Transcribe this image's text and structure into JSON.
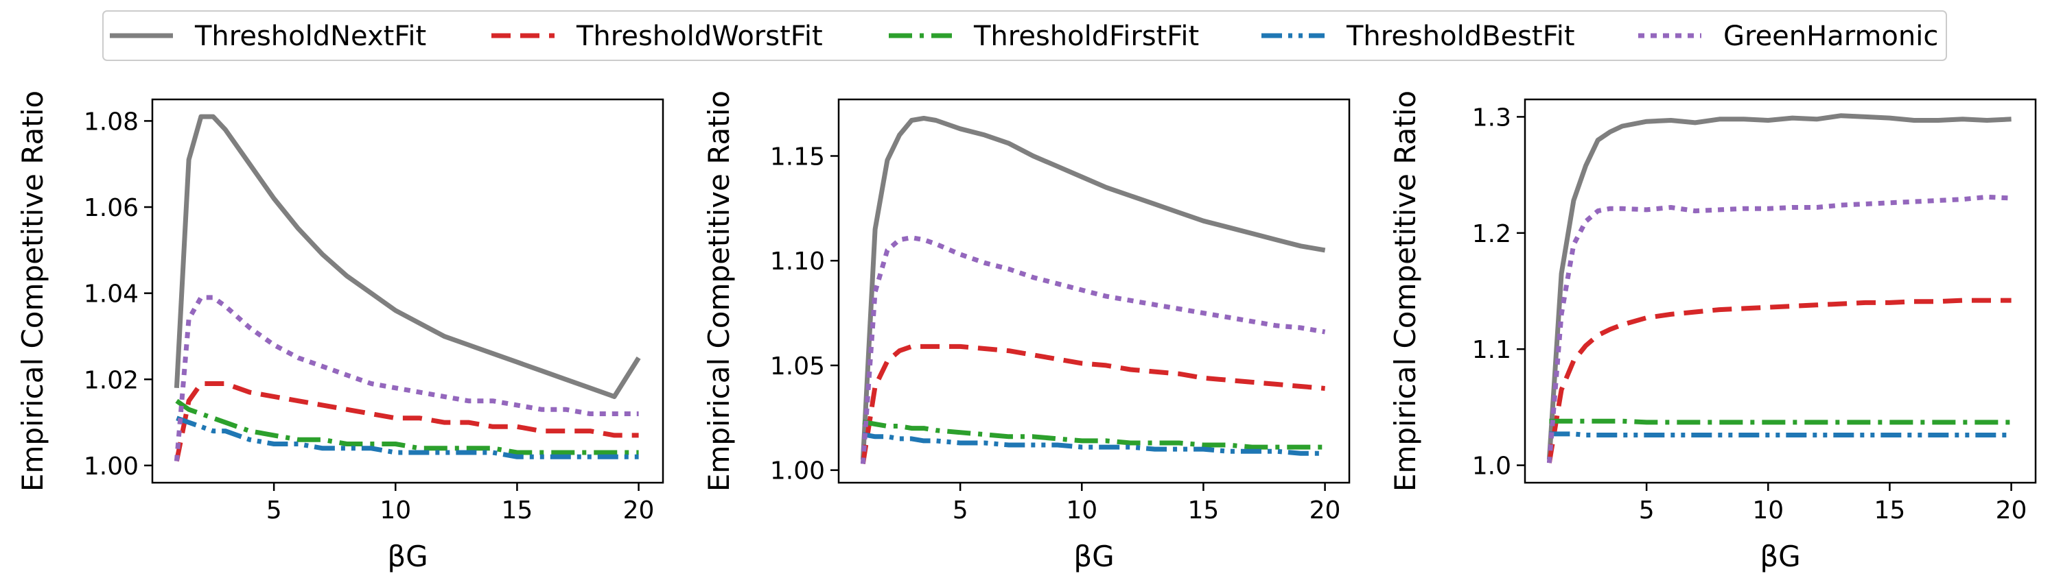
{
  "legend": {
    "placement": "top-center",
    "entries": [
      {
        "name": "ThresholdNextFit",
        "color": "#7f7f7f",
        "style": "solid"
      },
      {
        "name": "ThresholdWorstFit",
        "color": "#d62728",
        "style": "dashed"
      },
      {
        "name": "ThresholdFirstFit",
        "color": "#2ca02c",
        "style": "dashdot"
      },
      {
        "name": "ThresholdBestFit",
        "color": "#1f77b4",
        "style": "dashdotdot"
      },
      {
        "name": "GreenHarmonic",
        "color": "#9467bd",
        "style": "dotted"
      }
    ]
  },
  "chart_data": [
    {
      "type": "line",
      "xlabel": "βG",
      "ylabel": "Empirical Competitive Ratio",
      "xlim": [
        0,
        21
      ],
      "ylim": [
        0.996,
        1.085
      ],
      "xticks": [
        "5",
        "10",
        "15",
        "20"
      ],
      "yticks": [
        "1.00",
        "1.02",
        "1.04",
        "1.06",
        "1.08"
      ],
      "grid": false,
      "x": [
        1,
        1.5,
        2,
        2.5,
        3,
        4,
        5,
        6,
        7,
        8,
        9,
        10,
        11,
        12,
        13,
        14,
        15,
        16,
        17,
        18,
        19,
        20
      ],
      "series": [
        {
          "name": "ThresholdNextFit",
          "values": [
            1.018,
            1.071,
            1.081,
            1.081,
            1.078,
            1.07,
            1.062,
            1.055,
            1.049,
            1.044,
            1.04,
            1.036,
            1.033,
            1.03,
            1.028,
            1.026,
            1.024,
            1.022,
            1.02,
            1.018,
            1.016,
            1.025
          ]
        },
        {
          "name": "ThresholdWorstFit",
          "values": [
            1.001,
            1.015,
            1.019,
            1.019,
            1.019,
            1.017,
            1.016,
            1.015,
            1.014,
            1.013,
            1.012,
            1.011,
            1.011,
            1.01,
            1.01,
            1.009,
            1.009,
            1.008,
            1.008,
            1.008,
            1.007,
            1.007
          ]
        },
        {
          "name": "ThresholdFirstFit",
          "values": [
            1.015,
            1.013,
            1.012,
            1.011,
            1.01,
            1.008,
            1.007,
            1.006,
            1.006,
            1.005,
            1.005,
            1.005,
            1.004,
            1.004,
            1.004,
            1.004,
            1.003,
            1.003,
            1.003,
            1.003,
            1.003,
            1.003
          ]
        },
        {
          "name": "ThresholdBestFit",
          "values": [
            1.011,
            1.01,
            1.009,
            1.008,
            1.008,
            1.006,
            1.005,
            1.005,
            1.004,
            1.004,
            1.004,
            1.003,
            1.003,
            1.003,
            1.003,
            1.003,
            1.002,
            1.002,
            1.002,
            1.002,
            1.002,
            1.002
          ]
        },
        {
          "name": "GreenHarmonic",
          "values": [
            1.001,
            1.034,
            1.039,
            1.039,
            1.037,
            1.032,
            1.028,
            1.025,
            1.023,
            1.021,
            1.019,
            1.018,
            1.017,
            1.016,
            1.015,
            1.015,
            1.014,
            1.013,
            1.013,
            1.012,
            1.012,
            1.012
          ]
        }
      ]
    },
    {
      "type": "line",
      "xlabel": "βG",
      "ylabel": "Empirical Competitive Ratio",
      "xlim": [
        0,
        21
      ],
      "ylim": [
        0.994,
        1.177
      ],
      "xticks": [
        "5",
        "10",
        "15",
        "20"
      ],
      "yticks": [
        "1.00",
        "1.05",
        "1.10",
        "1.15"
      ],
      "grid": false,
      "x": [
        1,
        1.5,
        2,
        2.5,
        3,
        3.5,
        4,
        5,
        6,
        7,
        8,
        9,
        10,
        11,
        12,
        13,
        14,
        15,
        16,
        17,
        18,
        19,
        20
      ],
      "series": [
        {
          "name": "ThresholdNextFit",
          "values": [
            1.005,
            1.115,
            1.148,
            1.16,
            1.167,
            1.168,
            1.167,
            1.163,
            1.16,
            1.156,
            1.15,
            1.145,
            1.14,
            1.135,
            1.131,
            1.127,
            1.123,
            1.119,
            1.116,
            1.113,
            1.11,
            1.107,
            1.105
          ]
        },
        {
          "name": "ThresholdWorstFit",
          "values": [
            1.003,
            1.04,
            1.052,
            1.057,
            1.059,
            1.059,
            1.059,
            1.059,
            1.058,
            1.057,
            1.055,
            1.053,
            1.051,
            1.05,
            1.048,
            1.047,
            1.046,
            1.044,
            1.043,
            1.042,
            1.041,
            1.04,
            1.039
          ]
        },
        {
          "name": "ThresholdFirstFit",
          "values": [
            1.023,
            1.022,
            1.021,
            1.021,
            1.02,
            1.02,
            1.019,
            1.018,
            1.017,
            1.016,
            1.016,
            1.015,
            1.014,
            1.014,
            1.013,
            1.013,
            1.013,
            1.012,
            1.012,
            1.011,
            1.011,
            1.011,
            1.011
          ]
        },
        {
          "name": "ThresholdBestFit",
          "values": [
            1.017,
            1.016,
            1.016,
            1.015,
            1.015,
            1.014,
            1.014,
            1.013,
            1.013,
            1.012,
            1.012,
            1.012,
            1.011,
            1.011,
            1.011,
            1.01,
            1.01,
            1.01,
            1.009,
            1.009,
            1.009,
            1.008,
            1.008
          ]
        },
        {
          "name": "GreenHarmonic",
          "values": [
            1.003,
            1.085,
            1.105,
            1.11,
            1.111,
            1.11,
            1.108,
            1.103,
            1.099,
            1.096,
            1.092,
            1.089,
            1.086,
            1.083,
            1.081,
            1.079,
            1.077,
            1.075,
            1.073,
            1.071,
            1.069,
            1.068,
            1.066
          ]
        }
      ]
    },
    {
      "type": "line",
      "xlabel": "βG",
      "ylabel": "Empirical Competitive Ratio",
      "xlim": [
        0,
        21
      ],
      "ylim": [
        0.985,
        1.315
      ],
      "xticks": [
        "5",
        "10",
        "15",
        "20"
      ],
      "yticks": [
        "1.0",
        "1.1",
        "1.2",
        "1.3"
      ],
      "grid": false,
      "x": [
        1,
        1.5,
        2,
        2.5,
        3,
        3.5,
        4,
        5,
        6,
        7,
        8,
        9,
        10,
        11,
        12,
        13,
        14,
        15,
        16,
        17,
        18,
        19,
        20
      ],
      "series": [
        {
          "name": "ThresholdNextFit",
          "values": [
            1.005,
            1.165,
            1.228,
            1.258,
            1.28,
            1.287,
            1.292,
            1.296,
            1.297,
            1.295,
            1.298,
            1.298,
            1.297,
            1.299,
            1.298,
            1.301,
            1.3,
            1.299,
            1.297,
            1.297,
            1.298,
            1.297,
            1.298
          ]
        },
        {
          "name": "ThresholdWorstFit",
          "values": [
            1.002,
            1.065,
            1.09,
            1.103,
            1.112,
            1.117,
            1.121,
            1.127,
            1.13,
            1.132,
            1.134,
            1.135,
            1.136,
            1.137,
            1.138,
            1.139,
            1.14,
            1.14,
            1.141,
            1.141,
            1.142,
            1.142,
            1.142
          ]
        },
        {
          "name": "ThresholdFirstFit",
          "values": [
            1.038,
            1.038,
            1.038,
            1.038,
            1.038,
            1.038,
            1.038,
            1.037,
            1.037,
            1.037,
            1.037,
            1.037,
            1.037,
            1.037,
            1.037,
            1.037,
            1.037,
            1.037,
            1.037,
            1.037,
            1.037,
            1.037,
            1.037
          ]
        },
        {
          "name": "ThresholdBestFit",
          "values": [
            1.027,
            1.027,
            1.027,
            1.026,
            1.026,
            1.026,
            1.026,
            1.026,
            1.026,
            1.026,
            1.026,
            1.026,
            1.026,
            1.026,
            1.026,
            1.026,
            1.026,
            1.026,
            1.026,
            1.026,
            1.026,
            1.026,
            1.026
          ]
        },
        {
          "name": "GreenHarmonic",
          "values": [
            1.002,
            1.13,
            1.19,
            1.21,
            1.219,
            1.221,
            1.221,
            1.22,
            1.222,
            1.219,
            1.22,
            1.221,
            1.221,
            1.222,
            1.222,
            1.224,
            1.225,
            1.226,
            1.227,
            1.228,
            1.229,
            1.231,
            1.23
          ]
        }
      ]
    }
  ]
}
